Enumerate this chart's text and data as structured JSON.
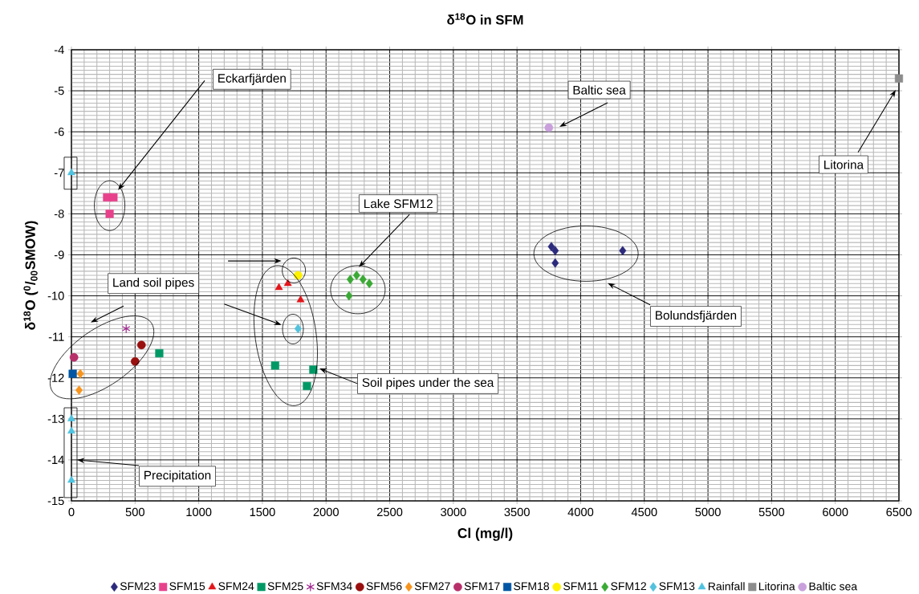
{
  "chart_data": {
    "type": "scatter",
    "title": "**δ$^{18}$O in SFM**",
    "xlabel": "Cl (mg/l)",
    "ylabel": "δ$^{18}$O ($^{0}$/$_{00}$SMOW)",
    "xlim": [
      0,
      6500
    ],
    "ylim": [
      -15,
      -4
    ],
    "xticks": [
      0,
      500,
      1000,
      1500,
      2000,
      2500,
      3000,
      3500,
      4000,
      4500,
      5000,
      5500,
      6000,
      6500
    ],
    "yticks": [
      -15,
      -14,
      -13,
      -12,
      -11,
      -10,
      -9,
      -8,
      -7,
      -6,
      -5,
      -4
    ],
    "grid": true,
    "legend": "bottom",
    "annotations": [
      "Eckarfjärden",
      "Baltic sea",
      "Litorina",
      "Lake SFM12",
      "Land soil pipes",
      "Bolundsfjärden",
      "Soil pipes under the sea",
      "Precipitation"
    ],
    "series": [
      {
        "name": "SFM23",
        "color": "#2b2a7c",
        "marker": "diamond",
        "x": [
          3770,
          3800,
          3800,
          4330
        ],
        "values": [
          -8.8,
          -8.9,
          -9.2,
          -8.9
        ]
      },
      {
        "name": "SFM15",
        "color": "#e8418c",
        "marker": "square",
        "x": [
          280,
          330,
          300
        ],
        "values": [
          -7.6,
          -7.6,
          -8.0
        ]
      },
      {
        "name": "SFM24",
        "color": "#e3161b",
        "marker": "triangle",
        "x": [
          1630,
          1700,
          1800
        ],
        "values": [
          -9.8,
          -9.7,
          -10.1
        ]
      },
      {
        "name": "SFM25",
        "color": "#009966",
        "marker": "square",
        "x": [
          690,
          1600,
          1900,
          1850
        ],
        "values": [
          -11.4,
          -11.7,
          -11.8,
          -12.2
        ]
      },
      {
        "name": "SFM34",
        "color": "#a0268f",
        "marker": "cross",
        "x": [
          430
        ],
        "values": [
          -10.8
        ]
      },
      {
        "name": "SFM56",
        "color": "#99100f",
        "marker": "circle",
        "x": [
          550,
          500
        ],
        "values": [
          -11.2,
          -11.6
        ]
      },
      {
        "name": "SFM27",
        "color": "#f7941d",
        "marker": "diamond",
        "x": [
          70,
          60
        ],
        "values": [
          -11.9,
          -12.3
        ]
      },
      {
        "name": "SFM17",
        "color": "#b7306a",
        "marker": "circle",
        "x": [
          20
        ],
        "values": [
          -11.5
        ]
      },
      {
        "name": "SFM18",
        "color": "#0056a4",
        "marker": "square",
        "x": [
          10
        ],
        "values": [
          -11.9
        ]
      },
      {
        "name": "SFM11",
        "color": "#fff200",
        "marker": "circle",
        "x": [
          1780
        ],
        "values": [
          -9.5
        ]
      },
      {
        "name": "SFM12",
        "color": "#3aaa35",
        "marker": "diamond",
        "x": [
          2190,
          2240,
          2290,
          2340,
          2180
        ],
        "values": [
          -9.6,
          -9.5,
          -9.6,
          -9.7,
          -10.0
        ]
      },
      {
        "name": "SFM13",
        "color": "#54c2dc",
        "marker": "diamond",
        "x": [
          1780
        ],
        "values": [
          -10.8
        ]
      },
      {
        "name": "Rainfall",
        "color": "#4ec3e0",
        "marker": "triangle",
        "x": [
          0,
          0,
          0,
          0
        ],
        "values": [
          -7.0,
          -13.0,
          -13.3,
          -14.5
        ]
      },
      {
        "name": "Litorina",
        "color": "#8c8c8c",
        "marker": "square",
        "x": [
          6500
        ],
        "values": [
          -4.7
        ]
      },
      {
        "name": "Baltic sea",
        "color": "#c9a0dc",
        "marker": "circle",
        "x": [
          3750
        ],
        "values": [
          -5.9
        ]
      }
    ]
  }
}
